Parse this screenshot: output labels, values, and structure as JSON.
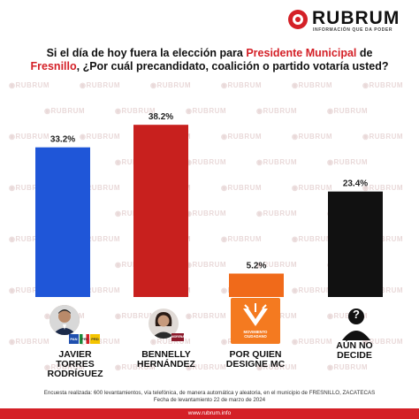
{
  "brand": {
    "name": "RUBRUM",
    "tagline": "INFORMACIÓN QUE DA PODER",
    "watermark": "RUBRUM",
    "accent_color": "#d42027"
  },
  "question": {
    "part1": "Si el día de hoy fuera la elección para ",
    "highlight1": "Presidente Municipal",
    "part2": " de",
    "highlight2": "Fresnillo",
    "part3": ", ¿Por cuál precandidato, coalición o partido votaría usted?"
  },
  "chart_data": {
    "type": "bar",
    "categories": [
      "JAVIER TORRES RODRÍGUEZ",
      "BENNELLY HERNÁNDEZ",
      "POR QUIEN DESIGNE MC",
      "AÚN NO DECIDE"
    ],
    "values": [
      33.2,
      38.2,
      5.2,
      23.4
    ],
    "value_labels": [
      "33.2%",
      "38.2%",
      "5.2%",
      "23.4%"
    ],
    "colors": [
      "#1f56d8",
      "#c8201e",
      "#f06a1a",
      "#111111"
    ],
    "ylim": [
      0,
      40
    ],
    "grid": false
  },
  "candidates": [
    {
      "name": "JAVIER\nTORRES\nRODRÍGUEZ",
      "icon": "candidate-photo",
      "parties": [
        "PAN",
        "PRI",
        "PRD"
      ]
    },
    {
      "name": "BENNELLY\nHERNÁNDEZ",
      "icon": "candidate-photo",
      "parties": [
        "MORENA"
      ]
    },
    {
      "name": "POR QUIEN\nDESIGNE MC",
      "icon": "movimiento-ciudadano-logo",
      "logo_text": "MOVIMIENTO\nCIUDADANO"
    },
    {
      "name": "AÚN NO\nDECIDE",
      "icon": "question-person-icon",
      "mark": "?"
    }
  ],
  "footer": {
    "line1": "Encuesta realizada: 600 levantamientos, vía telefónica, de manera automática y aleatoria, en el municipio de FRESNILLO, ZACATECAS",
    "line2": "Fecha de levantamiento 22 de marzo de 2024",
    "url": "www.rubrum.info"
  }
}
